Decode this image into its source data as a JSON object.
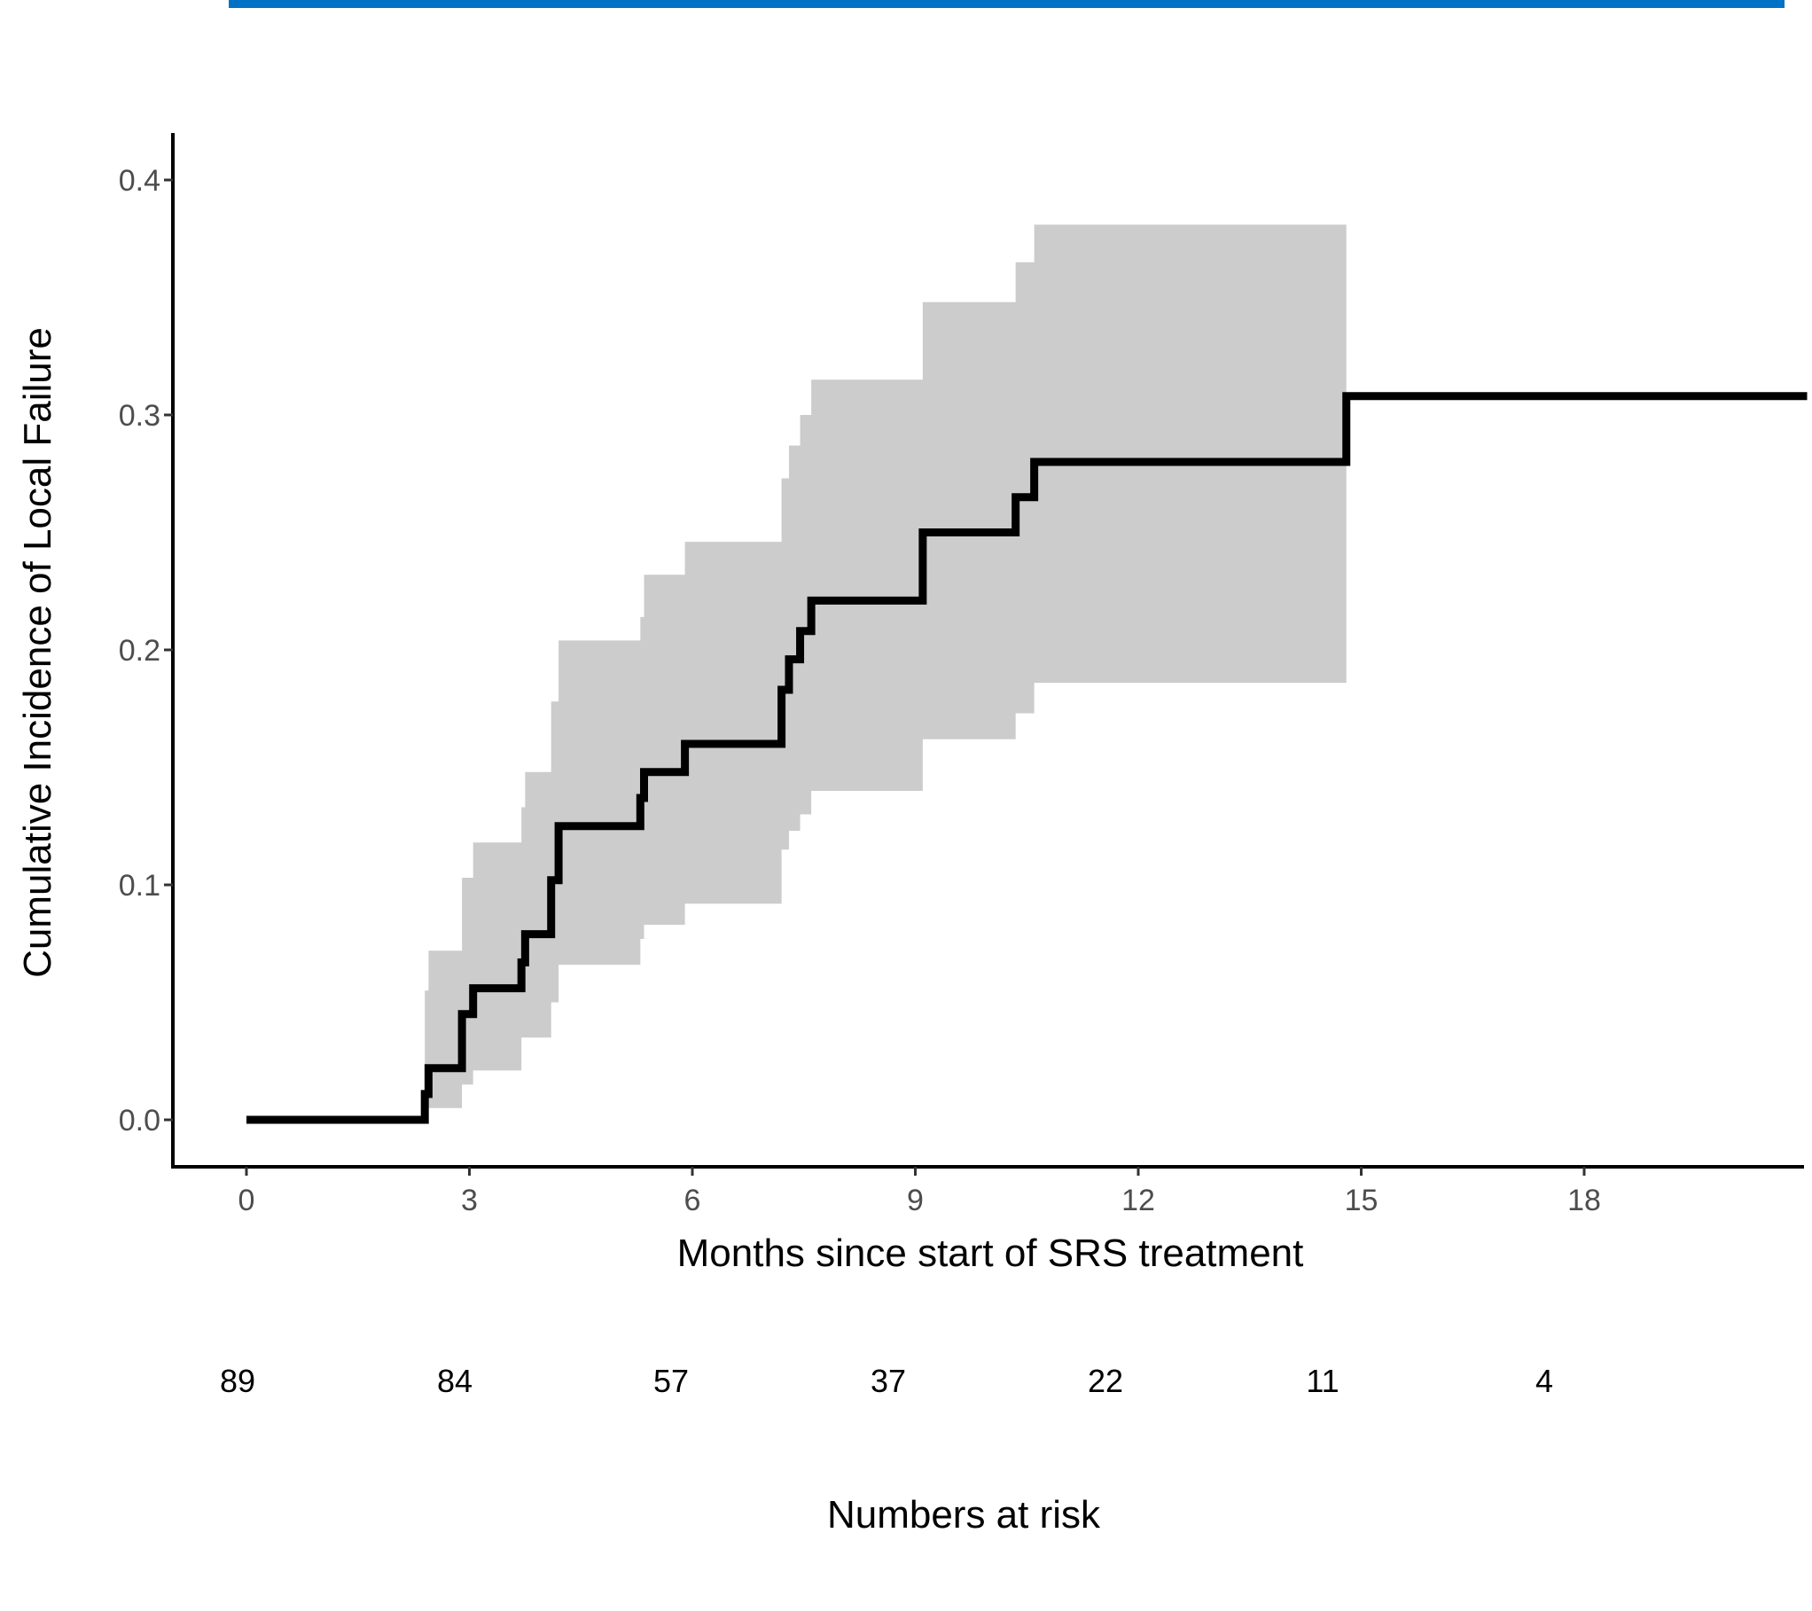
{
  "colors": {
    "top_bar": "#0072c6",
    "band": "#cccccc",
    "line": "#000000",
    "axis": "#000000",
    "tick_text": "#4d4d4d"
  },
  "chart_data": {
    "type": "line",
    "step": true,
    "title": "",
    "xlabel": "Months since start of SRS treatment",
    "ylabel": "Cumulative Incidence of Local Failure",
    "xlim": [
      -1,
      21
    ],
    "ylim": [
      -0.02,
      0.42
    ],
    "xticks": [
      0,
      3,
      6,
      9,
      12,
      15,
      18
    ],
    "xtick_labels": [
      "0",
      "3",
      "6",
      "9",
      "12",
      "15",
      "18"
    ],
    "yticks": [
      0.0,
      0.1,
      0.2,
      0.3,
      0.4
    ],
    "ytick_labels": [
      "0.0",
      "0.1",
      "0.2",
      "0.3",
      "0.4"
    ],
    "grid": false,
    "series": [
      {
        "x": [
          0,
          2.4,
          2.45,
          2.9,
          3.05,
          3.7,
          3.75,
          4.1,
          4.2,
          5.3,
          5.35,
          5.9,
          7.2,
          7.3,
          7.45,
          7.6,
          9.1,
          10.35,
          10.6,
          14.8,
          21
        ],
        "y": [
          0.0,
          0.011,
          0.022,
          0.045,
          0.056,
          0.067,
          0.079,
          0.102,
          0.125,
          0.137,
          0.148,
          0.16,
          0.183,
          0.196,
          0.208,
          0.221,
          0.25,
          0.265,
          0.28,
          0.308,
          0.308
        ]
      }
    ],
    "ci_band": {
      "x": [
        2.4,
        2.45,
        2.9,
        3.05,
        3.7,
        3.75,
        4.1,
        4.2,
        5.3,
        5.35,
        5.9,
        7.2,
        7.3,
        7.45,
        7.6,
        9.1,
        10.35,
        10.6,
        14.8
      ],
      "lower": [
        0.005,
        0.005,
        0.015,
        0.021,
        0.035,
        0.035,
        0.05,
        0.066,
        0.077,
        0.083,
        0.092,
        0.115,
        0.123,
        0.13,
        0.14,
        0.162,
        0.173,
        0.186,
        0.186
      ],
      "upper": [
        0.055,
        0.072,
        0.103,
        0.118,
        0.133,
        0.148,
        0.178,
        0.204,
        0.214,
        0.232,
        0.246,
        0.273,
        0.287,
        0.3,
        0.315,
        0.348,
        0.365,
        0.381,
        0.381
      ]
    },
    "numbers_at_risk": {
      "label": "Numbers at risk",
      "values": [
        "89",
        "84",
        "57",
        "37",
        "22",
        "11",
        "4"
      ]
    }
  }
}
